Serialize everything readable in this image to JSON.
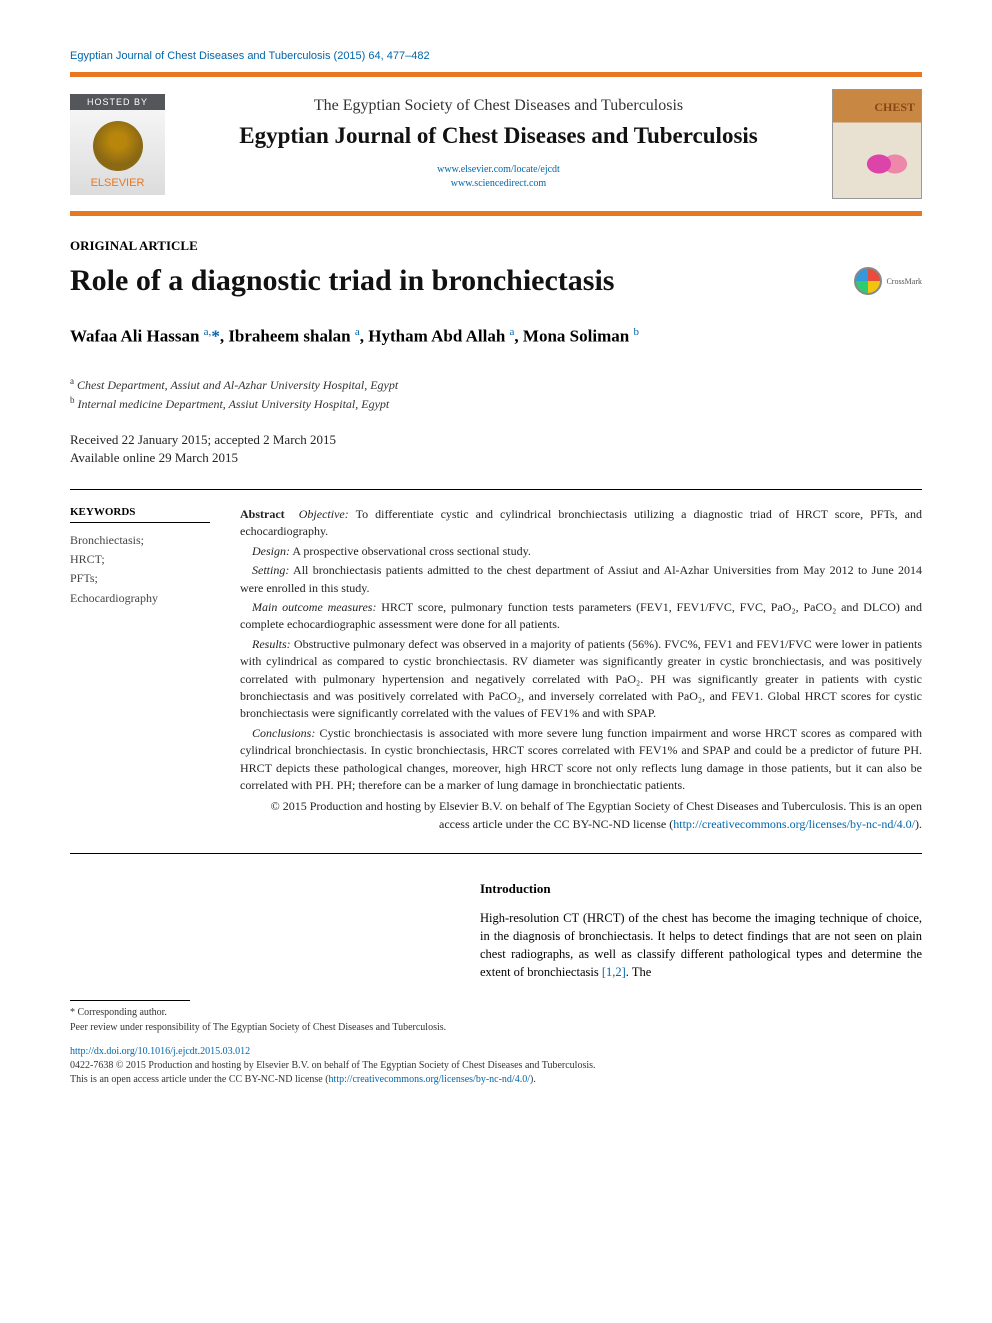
{
  "running_head": "Egyptian Journal of Chest Diseases and Tuberculosis (2015) 64, 477–482",
  "header": {
    "hosted_by": "HOSTED BY",
    "publisher": "ELSEVIER",
    "society": "The Egyptian Society of Chest Diseases and Tuberculosis",
    "journal": "Egyptian Journal of Chest Diseases and Tuberculosis",
    "link1": "www.elsevier.com/locate/ejcdt",
    "link2": "www.sciencedirect.com",
    "cover_label": "CHEST"
  },
  "article_type": "ORIGINAL ARTICLE",
  "title": "Role of a diagnostic triad in bronchiectasis",
  "crossmark": "CrossMark",
  "authors_html": "Wafaa Ali Hassan <sup>a,</sup><span class='star'>*</span>, Ibraheem shalan <sup>a</sup>, Hytham Abd Allah <sup>a</sup>, Mona Soliman <sup>b</sup>",
  "affiliations": {
    "a": "Chest Department, Assiut and Al-Azhar University Hospital, Egypt",
    "b": "Internal medicine Department, Assiut University Hospital, Egypt"
  },
  "dates": {
    "received_accepted": "Received 22 January 2015; accepted 2 March 2015",
    "online": "Available online 29 March 2015"
  },
  "keywords": {
    "heading": "KEYWORDS",
    "items": "Bronchiectasis;\nHRCT;\nPFTs;\nEchocardiography"
  },
  "abstract": {
    "lead": "Abstract",
    "objective_label": "Objective:",
    "objective": "To differentiate cystic and cylindrical bronchiectasis utilizing a diagnostic triad of HRCT score, PFTs, and echocardiography.",
    "design_label": "Design:",
    "design": "A prospective observational cross sectional study.",
    "setting_label": "Setting:",
    "setting": "All bronchiectasis patients admitted to the chest department of Assiut and Al-Azhar Universities from May 2012 to June 2014 were enrolled in this study.",
    "measures_label": "Main outcome measures:",
    "measures": "HRCT score, pulmonary function tests parameters (FEV1, FEV1/FVC, FVC, PaO₂, PaCO₂ and DLCO) and complete echocardiographic assessment were done for all patients.",
    "results_label": "Results:",
    "results": "Obstructive pulmonary defect was observed in a majority of patients (56%). FVC%, FEV1 and FEV1/FVC were lower in patients with cylindrical as compared to cystic bronchiectasis. RV diameter was significantly greater in cystic bronchiectasis, and was positively correlated with pulmonary hypertension and negatively correlated with PaO₂. PH was significantly greater in patients with cystic bronchiectasis and was positively correlated with PaCO₂, and inversely correlated with PaO₂, and FEV1. Global HRCT scores for cystic bronchiectasis were significantly correlated with the values of FEV1% and with SPAP.",
    "conclusions_label": "Conclusions:",
    "conclusions": "Cystic bronchiectasis is associated with more severe lung function impairment and worse HRCT scores as compared with cylindrical bronchiectasis. In cystic bronchiectasis, HRCT scores correlated with FEV1% and SPAP and could be a predictor of future PH. HRCT depicts these pathological changes, moreover, high HRCT score not only reflects lung damage in those patients, but it can also be correlated with PH. PH; therefore can be a marker of lung damage in bronchiectatic patients.",
    "copyright": "© 2015 Production and hosting by Elsevier B.V. on behalf of The Egyptian Society of Chest Diseases and Tuberculosis. This is an open access article under the CC BY-NC-ND license (",
    "license_url": "http://creativecommons.org/licenses/by-nc-nd/4.0/",
    "copyright_close": ")."
  },
  "corresponding": {
    "star": "* Corresponding author.",
    "peer": "Peer review under responsibility of The Egyptian Society of Chest Diseases and Tuberculosis."
  },
  "introduction": {
    "heading": "Introduction",
    "body_pre": "High-resolution CT (HRCT) of the chest has become the imaging technique of choice, in the diagnosis of bronchiectasis. It helps to detect findings that are not seen on plain chest radiographs, as well as classify different pathological types and determine the extent of bronchiectasis ",
    "cite": "[1,2]",
    "body_post": ". The"
  },
  "footer": {
    "doi": "http://dx.doi.org/10.1016/j.ejcdt.2015.03.012",
    "issn_line": "0422-7638 © 2015 Production and hosting by Elsevier B.V. on behalf of The Egyptian Society of Chest Diseases and Tuberculosis.",
    "license_line": "This is an open access article under the CC BY-NC-ND license (",
    "license_url": "http://creativecommons.org/licenses/by-nc-nd/4.0/",
    "license_close": ")."
  },
  "colors": {
    "accent": "#e87722",
    "link": "#0066aa",
    "text": "#222222"
  }
}
